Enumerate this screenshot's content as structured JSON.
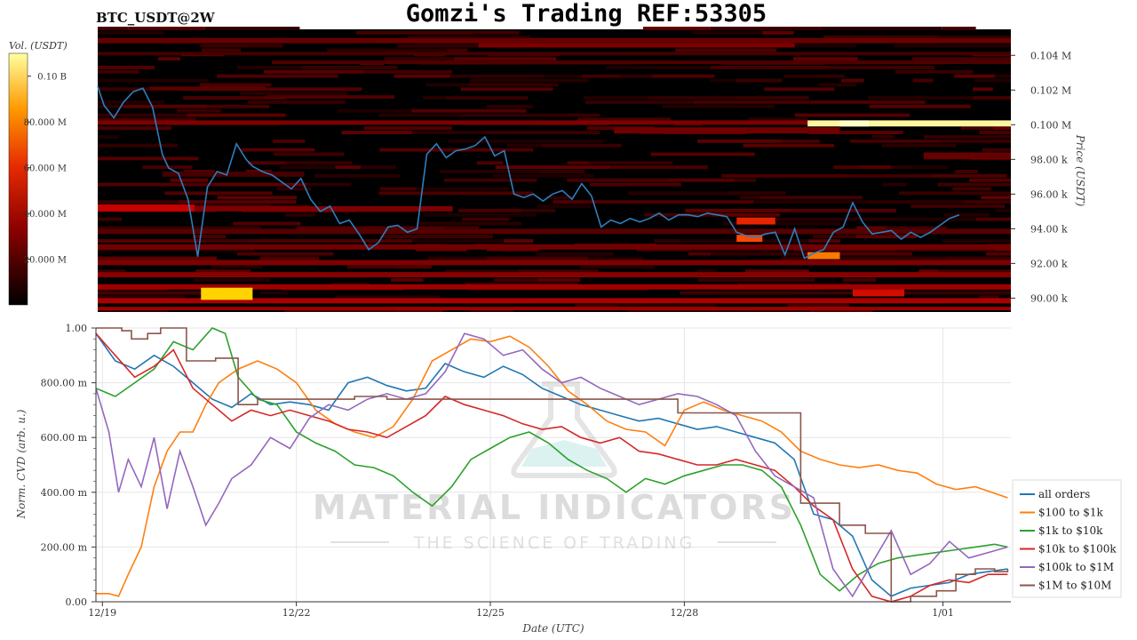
{
  "header": {
    "symbol": "BTC_USDT@2W",
    "title": "Gomzi's Trading REF:53305"
  },
  "watermark": {
    "main": "MATERIAL INDICATORS",
    "sub": "THE SCIENCE OF TRADING"
  },
  "colors": {
    "price_line": "#2f7ebc",
    "heatmap_bg": "#000000",
    "all_orders": "#1f77b4",
    "usd100_1k": "#ff7f0e",
    "usd1k_10k": "#2ca02c",
    "usd10k_100k": "#d62728",
    "usd100k_1m": "#9467bd",
    "usd1m_10m": "#8c564b"
  },
  "chart_data": [
    {
      "type": "heatmap",
      "name": "order book liquidity heatmap with price",
      "colorbar": {
        "label": "Vol. (USDT)",
        "ticks": [
          "0.10 B",
          "80.000 M",
          "60.000 M",
          "40.000 M",
          "20.000 M"
        ],
        "tick_values": [
          100000000,
          80000000,
          60000000,
          40000000,
          20000000
        ],
        "range": [
          0,
          110000000
        ]
      },
      "ylabel": "Price (USDT)",
      "y_ticks": [
        "0.104 M",
        "0.102 M",
        "0.100 M",
        "98.00 k",
        "96.00 k",
        "94.00 k",
        "92.00 k",
        "90.00 k"
      ],
      "y_tick_values": [
        104000,
        102000,
        100000,
        98000,
        96000,
        94000,
        92000,
        90000
      ],
      "ylim": [
        89200,
        105500
      ],
      "xlim": [
        0,
        14.15
      ],
      "price_series": {
        "x": [
          0,
          0.1,
          0.25,
          0.4,
          0.55,
          0.7,
          0.85,
          1.0,
          1.1,
          1.25,
          1.4,
          1.55,
          1.7,
          1.85,
          2.0,
          2.15,
          2.3,
          2.4,
          2.55,
          2.7,
          2.85,
          3.0,
          3.15,
          3.3,
          3.45,
          3.6,
          3.75,
          3.9,
          4.05,
          4.2,
          4.35,
          4.5,
          4.65,
          4.8,
          4.95,
          5.1,
          5.25,
          5.4,
          5.55,
          5.7,
          5.85,
          6.0,
          6.15,
          6.3,
          6.45,
          6.6,
          6.75,
          6.9,
          7.05,
          7.2,
          7.35,
          7.5,
          7.65,
          7.8,
          7.95,
          8.1,
          8.25,
          8.4,
          8.55,
          8.7,
          8.85,
          9.0,
          9.15,
          9.3,
          9.45,
          9.6,
          9.75,
          9.9,
          10.05,
          10.2,
          10.35,
          10.5,
          10.65,
          10.8,
          10.95,
          11.1,
          11.25,
          11.4,
          11.55,
          11.7,
          11.85,
          12.0,
          12.15,
          12.3,
          12.45,
          12.6,
          12.75,
          12.9,
          13.05,
          13.2,
          13.35,
          13.5,
          13.65,
          13.8,
          13.95,
          14.1
        ],
        "y": [
          102200,
          101100,
          100400,
          101300,
          101900,
          102100,
          101000,
          98300,
          97500,
          97200,
          95700,
          92400,
          96400,
          97300,
          97100,
          98900,
          98000,
          97600,
          97300,
          97100,
          96700,
          96300,
          96900,
          95700,
          95000,
          95300,
          94300,
          94500,
          93700,
          92800,
          93200,
          94100,
          94200,
          93800,
          94000,
          98300,
          98900,
          98100,
          98500,
          98600,
          98800,
          99300,
          98200,
          98500,
          96000,
          95800,
          96000,
          95600,
          96000,
          96200,
          95700,
          96600,
          95900,
          94100,
          94500,
          94300,
          94600,
          94400,
          94600,
          94900,
          94500,
          94800,
          94800,
          94700,
          94900,
          94800,
          94700,
          93800,
          93600,
          93500,
          93700,
          93800,
          92500,
          94000,
          92300,
          92600,
          92800,
          93800,
          94100,
          95500,
          94400,
          93700,
          93800,
          93900,
          93400,
          93800,
          93500,
          93800,
          94200,
          94600,
          94800
        ]
      },
      "bands": [
        {
          "x0": 0,
          "x1": 14.15,
          "y0": 104700,
          "y1": 105000,
          "intensity": 0.18
        },
        {
          "x0": 5.9,
          "x1": 10.8,
          "y0": 104450,
          "y1": 104700,
          "intensity": 0.22
        },
        {
          "x0": 0,
          "x1": 14.15,
          "y0": 104000,
          "y1": 104200,
          "intensity": 0.12
        },
        {
          "x0": 2.7,
          "x1": 14.15,
          "y0": 103500,
          "y1": 103700,
          "intensity": 0.14
        },
        {
          "x0": 0.8,
          "x1": 2.6,
          "y0": 102000,
          "y1": 102200,
          "intensity": 0.16
        },
        {
          "x0": 2.6,
          "x1": 4.6,
          "y0": 101500,
          "y1": 101700,
          "intensity": 0.14
        },
        {
          "x0": 0,
          "x1": 11.0,
          "y0": 100000,
          "y1": 100250,
          "intensity": 0.22
        },
        {
          "x0": 11.0,
          "x1": 14.15,
          "y0": 99900,
          "y1": 100250,
          "intensity": 0.97
        },
        {
          "x0": 11.5,
          "x1": 11.95,
          "y0": 99900,
          "y1": 100250,
          "intensity": 1.0
        },
        {
          "x0": 8.0,
          "x1": 11.5,
          "y0": 99500,
          "y1": 99850,
          "intensity": 0.2
        },
        {
          "x0": 12.8,
          "x1": 14.15,
          "y0": 98000,
          "y1": 98400,
          "intensity": 0.18
        },
        {
          "x0": 1.0,
          "x1": 3.2,
          "y0": 97000,
          "y1": 97300,
          "intensity": 0.12
        },
        {
          "x0": 0,
          "x1": 1.5,
          "y0": 95000,
          "y1": 95400,
          "intensity": 0.35
        },
        {
          "x0": 1.5,
          "x1": 5.5,
          "y0": 95000,
          "y1": 95300,
          "intensity": 0.22
        },
        {
          "x0": 9.9,
          "x1": 10.5,
          "y0": 94250,
          "y1": 94650,
          "intensity": 0.5
        },
        {
          "x0": 9.9,
          "x1": 10.3,
          "y0": 93250,
          "y1": 93650,
          "intensity": 0.62
        },
        {
          "x0": 11.0,
          "x1": 11.5,
          "y0": 92250,
          "y1": 92650,
          "intensity": 0.7
        },
        {
          "x0": 0,
          "x1": 14.15,
          "y0": 93700,
          "y1": 94000,
          "intensity": 0.15
        },
        {
          "x0": 0,
          "x1": 14.15,
          "y0": 92800,
          "y1": 93100,
          "intensity": 0.2
        },
        {
          "x0": 0,
          "x1": 14.15,
          "y0": 91900,
          "y1": 92200,
          "intensity": 0.22
        },
        {
          "x0": 0,
          "x1": 14.15,
          "y0": 91200,
          "y1": 91500,
          "intensity": 0.24
        },
        {
          "x0": 0,
          "x1": 14.15,
          "y0": 90500,
          "y1": 90800,
          "intensity": 0.28
        },
        {
          "x0": 0,
          "x1": 14.15,
          "y0": 89700,
          "y1": 90000,
          "intensity": 0.3
        },
        {
          "x0": 0,
          "x1": 14.15,
          "y0": 89300,
          "y1": 89500,
          "intensity": 0.28
        },
        {
          "x0": 1.6,
          "x1": 2.4,
          "y0": 89900,
          "y1": 90600,
          "intensity": 0.85
        },
        {
          "x0": 11.7,
          "x1": 12.5,
          "y0": 90100,
          "y1": 90500,
          "intensity": 0.4
        }
      ]
    },
    {
      "type": "line",
      "name": "normalized CVD by order size",
      "xlabel": "Date (UTC)",
      "ylabel": "Norm. CVD (arb. u.)",
      "ylim": [
        0,
        1
      ],
      "xlim": [
        0,
        14.15
      ],
      "y_ticks": [
        "0.00",
        "200.00 m",
        "400.00 m",
        "600.00 m",
        "800.00 m",
        "1.00"
      ],
      "y_tick_values": [
        0,
        0.2,
        0.4,
        0.6,
        0.8,
        1.0
      ],
      "x_ticks": [
        "12/19",
        "12/22",
        "12/25",
        "12/28",
        "1/01"
      ],
      "x_tick_values": [
        0.1,
        3.1,
        6.1,
        9.1,
        13.1
      ],
      "grid": true,
      "legend_position": "right",
      "series": [
        {
          "name": "all orders",
          "color_key": "all_orders",
          "x": [
            0,
            0.3,
            0.6,
            0.9,
            1.2,
            1.5,
            1.8,
            2.1,
            2.4,
            2.7,
            3.0,
            3.3,
            3.6,
            3.9,
            4.2,
            4.5,
            4.8,
            5.1,
            5.4,
            5.7,
            6.0,
            6.3,
            6.6,
            6.9,
            7.2,
            7.5,
            7.8,
            8.1,
            8.4,
            8.7,
            9.0,
            9.3,
            9.6,
            9.9,
            10.2,
            10.5,
            10.8,
            11.1,
            11.4,
            11.7,
            12.0,
            12.3,
            12.6,
            12.9,
            13.2,
            13.5,
            13.8,
            14.1
          ],
          "y": [
            0.98,
            0.88,
            0.85,
            0.9,
            0.86,
            0.8,
            0.74,
            0.71,
            0.76,
            0.72,
            0.73,
            0.72,
            0.7,
            0.8,
            0.82,
            0.79,
            0.77,
            0.78,
            0.87,
            0.84,
            0.82,
            0.86,
            0.83,
            0.78,
            0.75,
            0.72,
            0.7,
            0.68,
            0.66,
            0.67,
            0.65,
            0.63,
            0.64,
            0.62,
            0.6,
            0.58,
            0.52,
            0.32,
            0.3,
            0.24,
            0.08,
            0.02,
            0.05,
            0.06,
            0.07,
            0.1,
            0.11,
            0.12
          ]
        },
        {
          "name": "$100 to $1k",
          "color_key": "usd100_1k",
          "x": [
            0,
            0.2,
            0.35,
            0.5,
            0.7,
            0.9,
            1.1,
            1.3,
            1.5,
            1.7,
            1.9,
            2.2,
            2.5,
            2.8,
            3.1,
            3.4,
            3.7,
            4.0,
            4.3,
            4.6,
            4.9,
            5.2,
            5.5,
            5.8,
            6.1,
            6.4,
            6.7,
            7.0,
            7.3,
            7.6,
            7.9,
            8.2,
            8.5,
            8.8,
            9.1,
            9.4,
            9.7,
            10.0,
            10.3,
            10.6,
            10.9,
            11.2,
            11.5,
            11.8,
            12.1,
            12.4,
            12.7,
            13.0,
            13.3,
            13.6,
            14.1
          ],
          "y": [
            0.03,
            0.03,
            0.02,
            0.1,
            0.2,
            0.42,
            0.55,
            0.62,
            0.62,
            0.72,
            0.8,
            0.85,
            0.88,
            0.85,
            0.8,
            0.7,
            0.65,
            0.62,
            0.6,
            0.64,
            0.74,
            0.88,
            0.92,
            0.96,
            0.95,
            0.97,
            0.93,
            0.86,
            0.77,
            0.72,
            0.66,
            0.63,
            0.62,
            0.57,
            0.7,
            0.73,
            0.7,
            0.68,
            0.66,
            0.62,
            0.55,
            0.52,
            0.5,
            0.49,
            0.5,
            0.48,
            0.47,
            0.43,
            0.41,
            0.42,
            0.38
          ]
        },
        {
          "name": "$1k to $10k",
          "color_key": "usd1k_10k",
          "x": [
            0,
            0.3,
            0.6,
            0.9,
            1.2,
            1.5,
            1.8,
            2.0,
            2.2,
            2.5,
            2.8,
            3.1,
            3.4,
            3.7,
            4.0,
            4.3,
            4.6,
            4.9,
            5.2,
            5.5,
            5.8,
            6.1,
            6.4,
            6.7,
            7.0,
            7.3,
            7.6,
            7.9,
            8.2,
            8.5,
            8.8,
            9.1,
            9.4,
            9.7,
            10.0,
            10.3,
            10.6,
            10.9,
            11.2,
            11.5,
            11.8,
            12.1,
            12.4,
            12.7,
            13.0,
            13.3,
            13.6,
            13.9,
            14.1
          ],
          "y": [
            0.78,
            0.75,
            0.8,
            0.85,
            0.95,
            0.92,
            1.0,
            0.98,
            0.82,
            0.74,
            0.72,
            0.62,
            0.58,
            0.55,
            0.5,
            0.49,
            0.46,
            0.4,
            0.35,
            0.42,
            0.52,
            0.56,
            0.6,
            0.62,
            0.58,
            0.52,
            0.48,
            0.45,
            0.4,
            0.45,
            0.43,
            0.46,
            0.48,
            0.5,
            0.5,
            0.48,
            0.42,
            0.28,
            0.1,
            0.04,
            0.1,
            0.14,
            0.16,
            0.17,
            0.18,
            0.19,
            0.2,
            0.21,
            0.2
          ]
        },
        {
          "name": "$10k to $100k",
          "color_key": "usd10k_100k",
          "x": [
            0,
            0.3,
            0.6,
            0.9,
            1.2,
            1.5,
            1.8,
            2.1,
            2.4,
            2.7,
            3.0,
            3.3,
            3.6,
            3.9,
            4.2,
            4.5,
            4.8,
            5.1,
            5.4,
            5.7,
            6.0,
            6.3,
            6.6,
            6.9,
            7.2,
            7.5,
            7.8,
            8.1,
            8.4,
            8.7,
            9.0,
            9.3,
            9.6,
            9.9,
            10.2,
            10.5,
            10.8,
            11.1,
            11.4,
            11.7,
            12.0,
            12.3,
            12.6,
            12.9,
            13.2,
            13.5,
            13.8,
            14.1
          ],
          "y": [
            0.98,
            0.9,
            0.82,
            0.86,
            0.92,
            0.78,
            0.72,
            0.66,
            0.7,
            0.68,
            0.7,
            0.68,
            0.66,
            0.63,
            0.62,
            0.6,
            0.64,
            0.68,
            0.75,
            0.72,
            0.7,
            0.68,
            0.65,
            0.63,
            0.64,
            0.6,
            0.58,
            0.6,
            0.55,
            0.54,
            0.52,
            0.5,
            0.5,
            0.52,
            0.5,
            0.48,
            0.42,
            0.35,
            0.3,
            0.12,
            0.02,
            0.0,
            0.02,
            0.06,
            0.08,
            0.07,
            0.1,
            0.1
          ]
        },
        {
          "name": "$100k to $1M",
          "color_key": "usd100k_1m",
          "x": [
            0,
            0.2,
            0.35,
            0.5,
            0.7,
            0.9,
            1.1,
            1.3,
            1.5,
            1.7,
            1.9,
            2.1,
            2.4,
            2.7,
            3.0,
            3.3,
            3.6,
            3.9,
            4.2,
            4.5,
            4.8,
            5.1,
            5.4,
            5.7,
            6.0,
            6.3,
            6.6,
            6.9,
            7.2,
            7.5,
            7.8,
            8.1,
            8.4,
            8.7,
            9.0,
            9.3,
            9.6,
            9.9,
            10.2,
            10.5,
            10.8,
            11.1,
            11.4,
            11.7,
            12.0,
            12.3,
            12.6,
            12.9,
            13.2,
            13.5,
            13.8,
            14.1
          ],
          "y": [
            0.78,
            0.62,
            0.4,
            0.52,
            0.42,
            0.6,
            0.34,
            0.55,
            0.42,
            0.28,
            0.36,
            0.45,
            0.5,
            0.6,
            0.56,
            0.67,
            0.72,
            0.7,
            0.74,
            0.76,
            0.74,
            0.76,
            0.84,
            0.98,
            0.96,
            0.9,
            0.92,
            0.85,
            0.8,
            0.82,
            0.78,
            0.75,
            0.72,
            0.74,
            0.76,
            0.75,
            0.72,
            0.68,
            0.55,
            0.46,
            0.42,
            0.38,
            0.12,
            0.02,
            0.14,
            0.26,
            0.1,
            0.14,
            0.22,
            0.16,
            0.18,
            0.2
          ]
        },
        {
          "name": "$1M to $10M",
          "color_key": "usd1m_10m",
          "step": true,
          "x": [
            0,
            0.4,
            0.55,
            0.8,
            1.0,
            1.4,
            1.85,
            2.2,
            2.5,
            4.0,
            4.5,
            8.0,
            9.0,
            10.2,
            10.9,
            11.5,
            11.9,
            12.3,
            12.6,
            13.0,
            13.3,
            13.6,
            13.9,
            14.1
          ],
          "y": [
            1.0,
            0.99,
            0.96,
            0.98,
            1.0,
            0.88,
            0.89,
            0.72,
            0.74,
            0.75,
            0.74,
            0.74,
            0.69,
            0.69,
            0.36,
            0.28,
            0.25,
            0.0,
            0.02,
            0.04,
            0.1,
            0.12,
            0.11,
            0.12
          ]
        }
      ]
    }
  ]
}
